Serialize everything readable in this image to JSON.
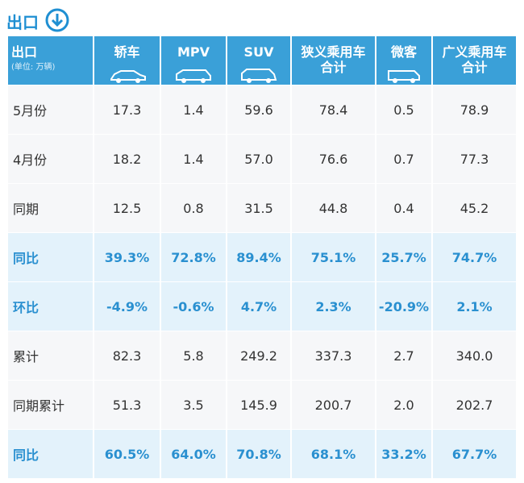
{
  "header": {
    "title": "出口"
  },
  "table": {
    "corner": {
      "title": "出口",
      "unit": "(单位: 万辆)"
    },
    "columns": [
      [
        "轿车"
      ],
      [
        "MPV"
      ],
      [
        "SUV"
      ],
      [
        "狭义乘用车",
        "合计"
      ],
      [
        "微客"
      ],
      [
        "广义乘用车",
        "合计"
      ]
    ],
    "rows": [
      [
        "5月份",
        "17.3",
        "1.4",
        "59.6",
        "78.4",
        "0.5",
        "78.9"
      ],
      [
        "4月份",
        "18.2",
        "1.4",
        "57.0",
        "76.6",
        "0.7",
        "77.3"
      ],
      [
        "同期",
        "12.5",
        "0.8",
        "31.5",
        "44.8",
        "0.4",
        "45.2"
      ],
      [
        "同比",
        "39.3%",
        "72.8%",
        "89.4%",
        "75.1%",
        "25.7%",
        "74.7%"
      ],
      [
        "环比",
        "-4.9%",
        "-0.6%",
        "4.7%",
        "2.3%",
        "-20.9%",
        "2.1%"
      ],
      [
        "累计",
        "82.3",
        "5.8",
        "249.2",
        "337.3",
        "2.7",
        "340.0"
      ],
      [
        "同期累计",
        "51.3",
        "3.5",
        "145.9",
        "200.7",
        "2.0",
        "202.7"
      ],
      [
        "同比",
        "60.5%",
        "64.0%",
        "70.8%",
        "68.1%",
        "33.2%",
        "67.7%"
      ]
    ]
  }
}
